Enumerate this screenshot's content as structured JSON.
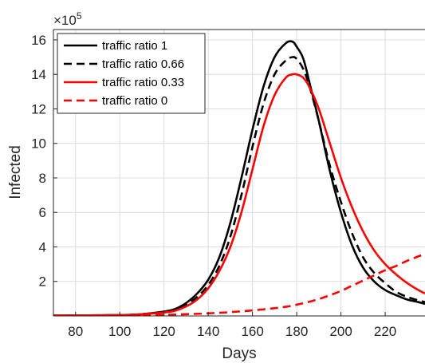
{
  "chart_data": {
    "type": "line",
    "xlabel": "Days",
    "ylabel": "Infected",
    "y_exponent_base": "×10",
    "y_exponent_power": "5",
    "xlim": [
      70,
      238
    ],
    "ylim": [
      0,
      16.6
    ],
    "xticks": [
      80,
      100,
      120,
      140,
      160,
      180,
      200,
      220
    ],
    "yticks": [
      2,
      4,
      6,
      8,
      10,
      12,
      14,
      16
    ],
    "grid": true,
    "legend_position": "top-left",
    "series": [
      {
        "name": "traffic ratio 1",
        "color": "#000000",
        "dash": "solid",
        "x": [
          70,
          100,
          110,
          120,
          125,
          130,
          135,
          140,
          145,
          150,
          155,
          160,
          165,
          170,
          175,
          178,
          180,
          183,
          186,
          190,
          195,
          200,
          205,
          210,
          215,
          220,
          225,
          230,
          235,
          238
        ],
        "y": [
          0.02,
          0.05,
          0.1,
          0.25,
          0.4,
          0.75,
          1.3,
          2.1,
          3.4,
          5.4,
          8.0,
          10.8,
          13.3,
          15.0,
          15.8,
          15.9,
          15.6,
          14.9,
          13.4,
          11.3,
          8.4,
          6.0,
          4.1,
          2.8,
          2.0,
          1.5,
          1.2,
          0.95,
          0.8,
          0.7
        ]
      },
      {
        "name": "traffic ratio 0.66",
        "color": "#000000",
        "dash": "dashed",
        "x": [
          70,
          100,
          110,
          120,
          125,
          130,
          135,
          140,
          145,
          150,
          155,
          160,
          165,
          170,
          175,
          178,
          180,
          183,
          186,
          190,
          195,
          200,
          205,
          210,
          215,
          220,
          225,
          230,
          235,
          238
        ],
        "y": [
          0.02,
          0.05,
          0.1,
          0.22,
          0.35,
          0.65,
          1.1,
          1.8,
          2.9,
          4.6,
          7.0,
          9.8,
          12.3,
          14.0,
          14.8,
          15.0,
          14.9,
          14.3,
          13.2,
          11.3,
          8.7,
          6.6,
          4.8,
          3.4,
          2.5,
          1.9,
          1.4,
          1.1,
          0.9,
          0.8
        ]
      },
      {
        "name": "traffic ratio 0.33",
        "color": "#ff0000",
        "dash": "solid",
        "x": [
          70,
          100,
          110,
          120,
          125,
          130,
          135,
          140,
          145,
          150,
          155,
          160,
          165,
          170,
          175,
          178,
          180,
          183,
          186,
          190,
          195,
          200,
          205,
          210,
          215,
          220,
          225,
          230,
          235,
          238
        ],
        "y": [
          0.02,
          0.05,
          0.1,
          0.2,
          0.3,
          0.55,
          0.95,
          1.6,
          2.6,
          4.0,
          6.0,
          8.5,
          11.0,
          12.8,
          13.8,
          14.0,
          14.0,
          13.8,
          13.2,
          12.0,
          10.0,
          8.0,
          6.3,
          4.9,
          3.8,
          3.0,
          2.4,
          1.9,
          1.5,
          1.3
        ]
      },
      {
        "name": "traffic ratio 0",
        "color": "#ff0000",
        "dash": "dashed",
        "x": [
          70,
          100,
          120,
          130,
          140,
          150,
          160,
          170,
          175,
          180,
          185,
          190,
          195,
          200,
          205,
          210,
          215,
          220,
          225,
          230,
          235,
          238
        ],
        "y": [
          0.0,
          0.02,
          0.06,
          0.1,
          0.15,
          0.22,
          0.32,
          0.45,
          0.53,
          0.65,
          0.8,
          0.98,
          1.2,
          1.45,
          1.75,
          2.05,
          2.35,
          2.65,
          2.9,
          3.2,
          3.45,
          3.6
        ]
      }
    ]
  }
}
